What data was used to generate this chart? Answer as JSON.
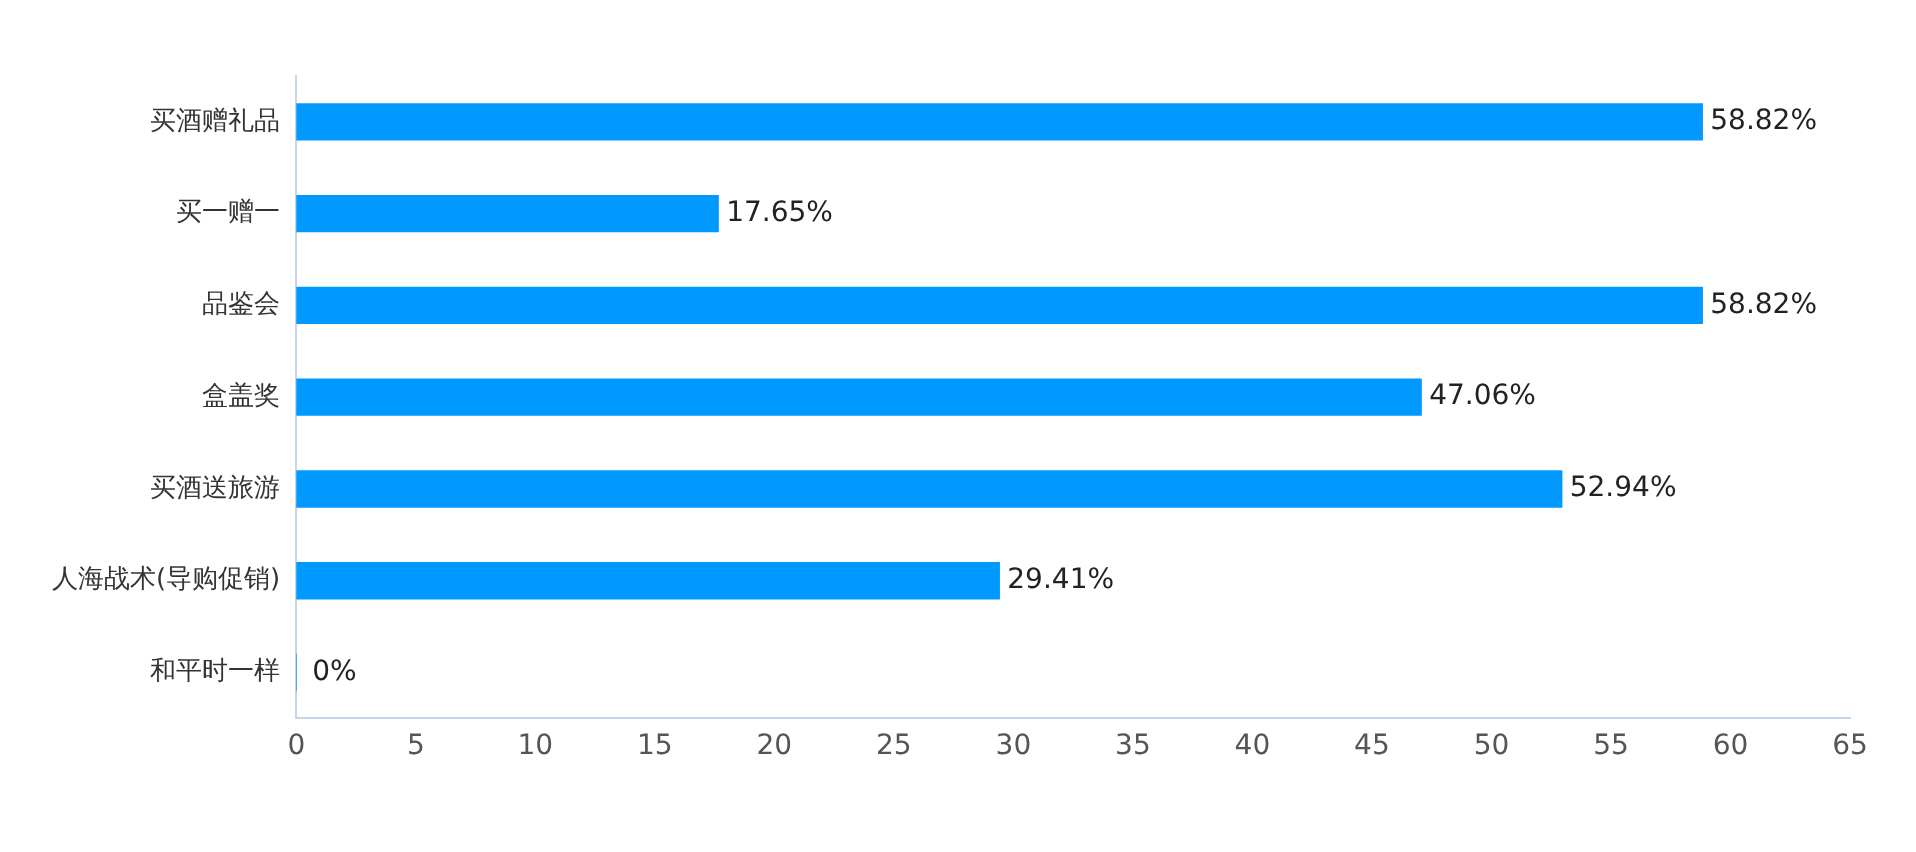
{
  "chart_data": {
    "type": "bar",
    "orientation": "horizontal",
    "categories": [
      "买酒赠礼品",
      "买一赠一",
      "品鉴会",
      "盒盖奖",
      "买酒送旅游",
      "人海战术(导购促销)",
      "和平时一样"
    ],
    "values": [
      58.82,
      17.65,
      58.82,
      47.06,
      52.94,
      29.41,
      0
    ],
    "value_labels": [
      "58.82%",
      "17.65%",
      "58.82%",
      "47.06%",
      "52.94%",
      "29.41%",
      "0%"
    ],
    "color": "#0099ff",
    "xlim": [
      0,
      65
    ],
    "xticks": [
      0,
      5,
      10,
      15,
      20,
      25,
      30,
      35,
      40,
      45,
      50,
      55,
      60,
      65
    ],
    "grid": false,
    "legend": false
  }
}
